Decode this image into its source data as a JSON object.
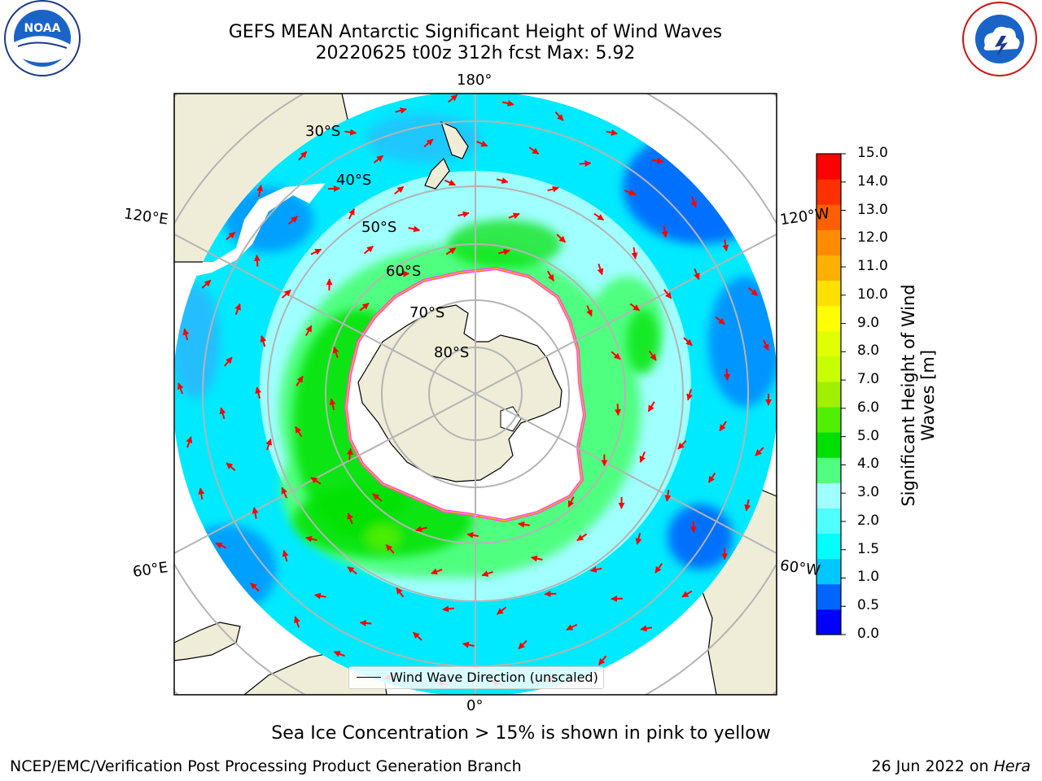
{
  "title": {
    "line1": "GEFS MEAN Antarctic Significant Height of Wind Waves",
    "line2": "20220625 t00z 312h fcst   Max: 5.92"
  },
  "graticule": {
    "meridians": [
      "180°",
      "120°E",
      "120°W",
      "60°E",
      "60°W",
      "0°"
    ],
    "parallels": [
      "30°S",
      "40°S",
      "50°S",
      "60°S",
      "70°S",
      "80°S"
    ]
  },
  "legend": {
    "label": "Wind Wave Direction (unscaled)"
  },
  "colorbar": {
    "title_line1": "Significant Height of Wind",
    "title_line2": "Waves [m]",
    "ticks": [
      "15.0",
      "14.0",
      "13.0",
      "12.0",
      "11.0",
      "10.0",
      "9.0",
      "8.0",
      "7.0",
      "6.0",
      "5.0",
      "4.0",
      "3.0",
      "2.0",
      "1.5",
      "1.0",
      "0.5",
      "0.0"
    ],
    "colors": [
      "#0000ff",
      "#0064ff",
      "#00c8ff",
      "#00ffff",
      "#50ffff",
      "#a0ffff",
      "#50ff80",
      "#00e000",
      "#50f000",
      "#a0f000",
      "#c8ff00",
      "#e0ff00",
      "#ffff00",
      "#ffe000",
      "#ffb000",
      "#ff8c00",
      "#ff5f00",
      "#ff3000",
      "#ff0000"
    ]
  },
  "note": "Sea Ice Concentration > 15% is shown in pink to yellow",
  "footer": {
    "left": "NCEP/EMC/Verification Post Processing Product Generation Branch",
    "right_prefix": "26 Jun 2022 on ",
    "right_machine": "Hera"
  },
  "logos": {
    "left": "NOAA",
    "right": "NATIONAL WEATHER SERVICE"
  },
  "colors": {
    "land": "#efedd8",
    "ice_free_ocean_outside": "#ffffff",
    "arrow": "#ff0000"
  }
}
